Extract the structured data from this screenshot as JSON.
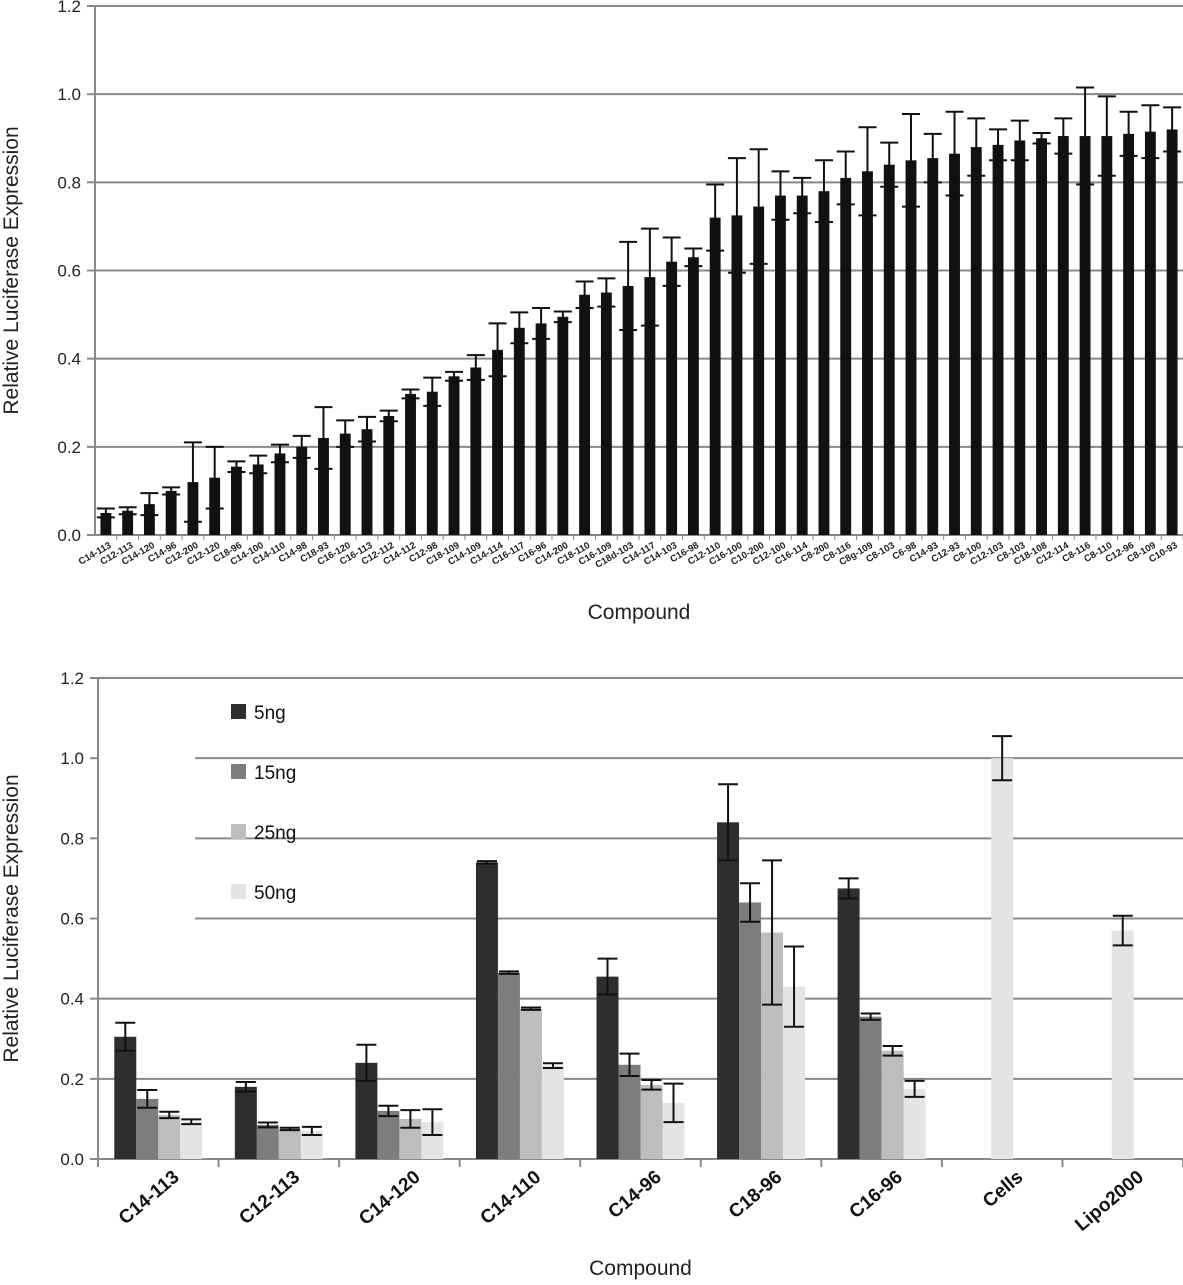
{
  "chart_data": [
    {
      "type": "bar",
      "title": "",
      "xlabel": "Compound",
      "ylabel": "Relative Luciferase Expression",
      "ylim": [
        0,
        1.2
      ],
      "yticks": [
        "0.0",
        "0.2",
        "0.4",
        "0.6",
        "0.8",
        "1.0",
        "1.2"
      ],
      "grid": true,
      "legend": "none",
      "colors": {
        "bar": "#111111",
        "axis": "#888888",
        "grid": "#888888",
        "text": "#222222"
      },
      "categories": [
        "C14-113",
        "C12-113",
        "C14-120",
        "C14-96",
        "C12-200",
        "C12-120",
        "C18-96",
        "C14-100",
        "C14-110",
        "C14-98",
        "C18-93",
        "C16-120",
        "C16-113",
        "C12-112",
        "C14-112",
        "C12-98",
        "C18-109",
        "C14-109",
        "C14-114",
        "C16-117",
        "C16-96",
        "C14-200",
        "C18-110",
        "C16-109",
        "C18d-103",
        "C14-117",
        "C14-103",
        "C16-98",
        "C12-110",
        "C16-100",
        "C10-200",
        "C12-100",
        "C16-114",
        "C8-200",
        "C8-116",
        "C8g-109",
        "C8-103",
        "C6-98",
        "C14-93",
        "C12-93",
        "C8-100",
        "C12-103",
        "C8-103",
        "C18-108",
        "C12-114",
        "C8-116",
        "C8-110",
        "C12-96",
        "C8-109",
        "C10-93"
      ],
      "values": [
        0.05,
        0.055,
        0.07,
        0.1,
        0.12,
        0.13,
        0.155,
        0.16,
        0.185,
        0.2,
        0.22,
        0.23,
        0.24,
        0.27,
        0.32,
        0.325,
        0.36,
        0.38,
        0.42,
        0.47,
        0.48,
        0.495,
        0.545,
        0.55,
        0.565,
        0.585,
        0.62,
        0.63,
        0.72,
        0.725,
        0.745,
        0.77,
        0.77,
        0.78,
        0.81,
        0.825,
        0.84,
        0.85,
        0.855,
        0.865,
        0.88,
        0.885,
        0.895,
        0.9,
        0.905,
        0.905,
        0.905,
        0.91,
        0.915,
        0.92
      ],
      "errors": [
        0.01,
        0.008,
        0.025,
        0.008,
        0.09,
        0.07,
        0.012,
        0.02,
        0.02,
        0.025,
        0.07,
        0.03,
        0.028,
        0.012,
        0.01,
        0.032,
        0.01,
        0.028,
        0.06,
        0.035,
        0.035,
        0.012,
        0.03,
        0.032,
        0.1,
        0.11,
        0.055,
        0.02,
        0.075,
        0.13,
        0.13,
        0.055,
        0.04,
        0.07,
        0.06,
        0.1,
        0.05,
        0.105,
        0.055,
        0.095,
        0.065,
        0.035,
        0.045,
        0.012,
        0.04,
        0.11,
        0.09,
        0.05,
        0.06,
        0.05
      ]
    },
    {
      "type": "bar",
      "title": "",
      "xlabel": "Compound",
      "ylabel": "Relative Luciferase Expression",
      "ylim": [
        0,
        1.2
      ],
      "yticks": [
        "0.0",
        "0.2",
        "0.4",
        "0.6",
        "0.8",
        "1.0",
        "1.2"
      ],
      "grid": true,
      "legend": "top-left",
      "colors": {
        "axis": "#888888",
        "grid": "#888888",
        "text": "#222222"
      },
      "categories": [
        "C14-113",
        "C12-113",
        "C14-120",
        "C14-110",
        "C14-96",
        "C18-96",
        "C16-96",
        "Cells",
        "Lipo2000"
      ],
      "series": [
        {
          "name": "5ng",
          "color": "#2e2e2e",
          "values": [
            0.305,
            0.18,
            0.24,
            0.74,
            0.455,
            0.84,
            0.675,
            null,
            null
          ],
          "errors": [
            0.035,
            0.012,
            0.045,
            0.003,
            0.045,
            0.095,
            0.025,
            null,
            null
          ]
        },
        {
          "name": "15ng",
          "color": "#7d7d7d",
          "values": [
            0.15,
            0.085,
            0.12,
            0.465,
            0.235,
            0.64,
            0.355,
            null,
            null
          ],
          "errors": [
            0.022,
            0.006,
            0.013,
            0.003,
            0.028,
            0.048,
            0.008,
            null,
            null
          ]
        },
        {
          "name": "25ng",
          "color": "#bdbdbd",
          "values": [
            0.11,
            0.075,
            0.1,
            0.375,
            0.185,
            0.565,
            0.27,
            null,
            null
          ],
          "errors": [
            0.008,
            0.003,
            0.022,
            0.003,
            0.012,
            0.18,
            0.012,
            null,
            null
          ]
        },
        {
          "name": "50ng",
          "color": "#e4e4e4",
          "values": [
            0.093,
            0.07,
            0.092,
            0.233,
            0.14,
            0.43,
            0.175,
            1.0,
            0.57
          ],
          "errors": [
            0.006,
            0.01,
            0.032,
            0.006,
            0.048,
            0.1,
            0.02,
            0.055,
            0.037
          ]
        }
      ]
    }
  ]
}
